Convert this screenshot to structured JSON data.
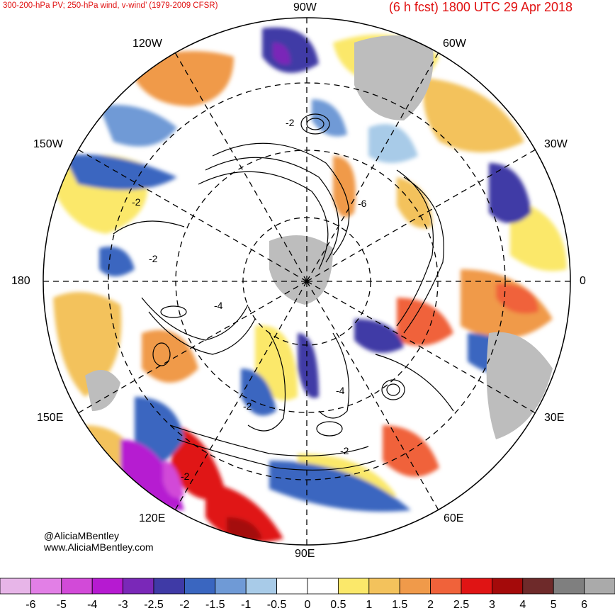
{
  "header": {
    "left_title": "300-200-hPa PV; 250-hPa wind, v-wind’ (1979-2009 CFSR)",
    "right_title": "(6 h fcst) 1800 UTC 29 Apr 2018"
  },
  "footer": {
    "handle": "@AliciaMBentley",
    "website": "www.AliciaMBentley.com"
  },
  "longitude_labels": {
    "top": "90W",
    "top_left": "120W",
    "top_right": "60W",
    "upper_left": "150W",
    "upper_right": "30W",
    "left": "180",
    "right": "0",
    "lower_left": "150E",
    "lower_right": "30E",
    "bottom_left": "120E",
    "bottom_right": "60E",
    "bottom": "90E"
  },
  "contour_labels": [
    "-2",
    "-2",
    "-2",
    "-6",
    "-4",
    "-4",
    "-2",
    "-2",
    "-2"
  ],
  "colorbar": {
    "labels": [
      "-6",
      "-5",
      "-4",
      "-3",
      "-2.5",
      "-2",
      "-1.5",
      "-1",
      "-0.5",
      "0",
      "0.5",
      "1",
      "1.5",
      "2",
      "2.5",
      "3",
      "4",
      "5",
      "6"
    ],
    "colors": [
      "#e7b5e8",
      "#e27fe6",
      "#d24ad8",
      "#b61ad1",
      "#7a28b8",
      "#3f3aa6",
      "#3a66c0",
      "#6f9ad6",
      "#a8cbe8",
      "#ffffff",
      "#ffffff",
      "#fbe86a",
      "#f3c25c",
      "#f09a4a",
      "#f0623a",
      "#e01414",
      "#a40a0a",
      "#6e2a2a",
      "#7f7f7f",
      "#aaaaaa"
    ]
  },
  "colors": {
    "title": "#e01010",
    "land": "#bdbdbd",
    "grid": "#000000"
  }
}
